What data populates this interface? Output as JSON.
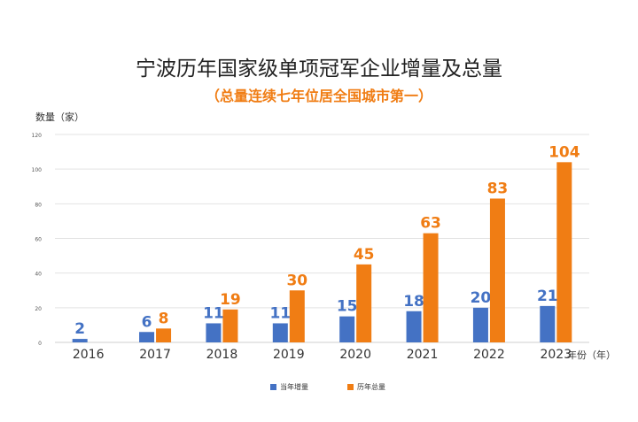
{
  "title": "宁波历年国家级单项冠军企业增量及总量",
  "subtitle": "（总量连续七年位居全国城市第一）",
  "colors": {
    "annual": "#4472c4",
    "total": "#f07d14",
    "grid": "#e3e3e3",
    "axis": "#cfcfcf"
  },
  "chart_data": {
    "type": "bar",
    "title": "宁波历年国家级单项冠军企业增量及总量",
    "subtitle": "（总量连续七年位居全国城市第一）",
    "ylabel": "数量（家）",
    "xlabel": "年份（年）",
    "ylim": [
      0,
      120
    ],
    "yticks": [
      "0",
      "20",
      "40",
      "60",
      "80",
      "100",
      "120"
    ],
    "grid": true,
    "legend": "bottom",
    "categories": [
      "2016",
      "2017",
      "2018",
      "2019",
      "2020",
      "2021",
      "2022",
      "2023"
    ],
    "series": [
      {
        "name": "当年增量",
        "values": [
          2,
          6,
          11,
          11,
          15,
          18,
          20,
          21
        ]
      },
      {
        "name": "历年总量",
        "values": [
          null,
          8,
          19,
          30,
          45,
          63,
          83,
          104
        ]
      }
    ]
  }
}
